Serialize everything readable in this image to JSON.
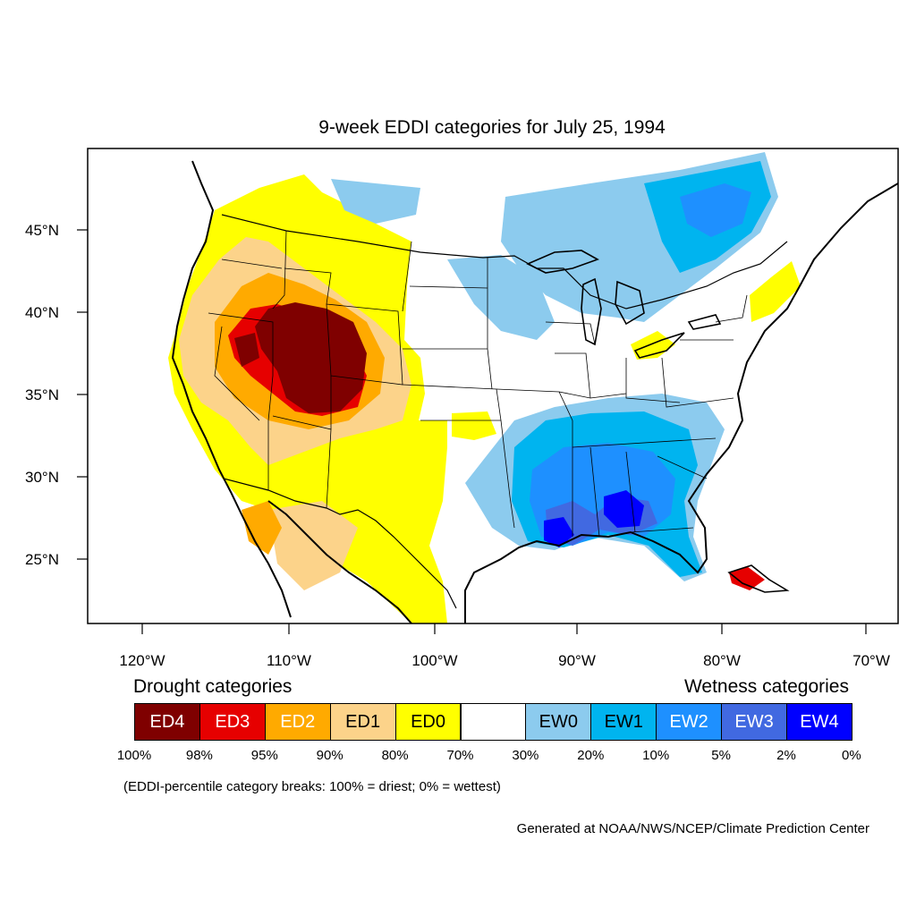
{
  "title": "9-week EDDI categories for July 25, 1994",
  "axes": {
    "lon_labels": [
      "120°W",
      "110°W",
      "100°W",
      "90°W",
      "80°W",
      "70°W"
    ],
    "lat_labels": [
      "45°N",
      "40°N",
      "35°N",
      "30°N",
      "25°N"
    ]
  },
  "legend": {
    "drought_heading": "Drought categories",
    "wetness_heading": "Wetness categories",
    "categories": [
      {
        "label": "ED4",
        "color": "#7f0000"
      },
      {
        "label": "ED3",
        "color": "#e60000"
      },
      {
        "label": "ED2",
        "color": "#ffaa00"
      },
      {
        "label": "ED1",
        "color": "#fcd38a"
      },
      {
        "label": "ED0",
        "color": "#ffff00"
      },
      {
        "label": "",
        "color": "#ffffff"
      },
      {
        "label": "EW0",
        "color": "#8ccbee"
      },
      {
        "label": "EW1",
        "color": "#00b4ef"
      },
      {
        "label": "EW2",
        "color": "#1e90ff"
      },
      {
        "label": "EW3",
        "color": "#4169e1"
      },
      {
        "label": "EW4",
        "color": "#0000ff"
      }
    ],
    "breaks": [
      "100%",
      "98%",
      "95%",
      "90%",
      "80%",
      "70%",
      "30%",
      "20%",
      "10%",
      "5%",
      "2%",
      "0%"
    ],
    "note": "(EDDI-percentile category breaks: 100% = driest; 0% = wettest)"
  },
  "credit": "Generated at NOAA/NWS/NCEP/Climate Prediction Center"
}
